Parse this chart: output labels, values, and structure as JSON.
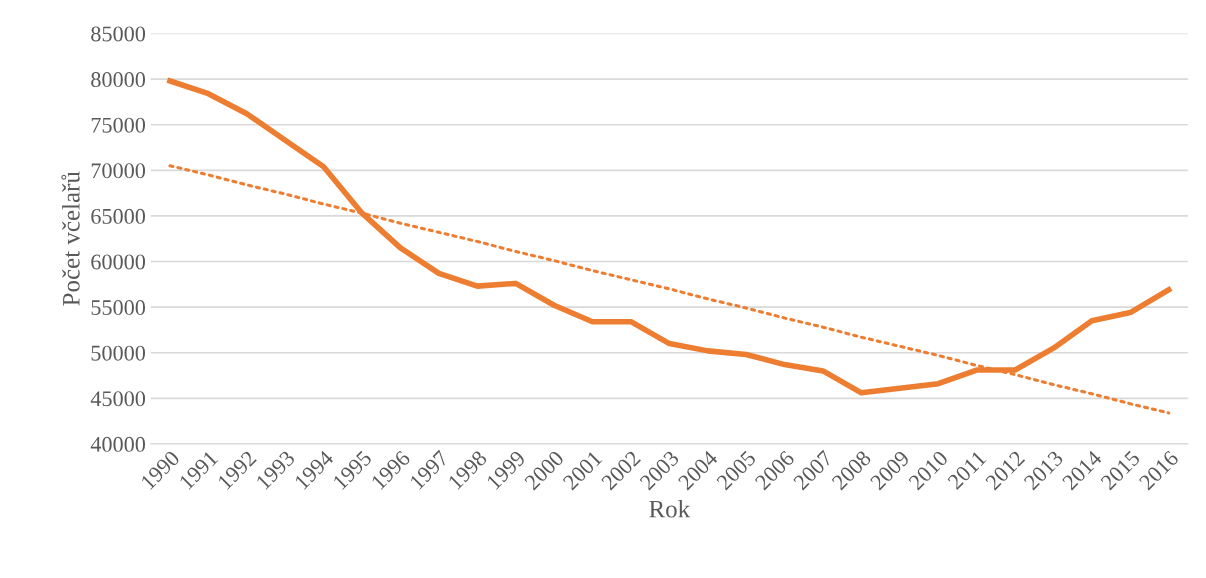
{
  "chart_data": {
    "type": "line",
    "xlabel": "Rok",
    "ylabel": "Počet včelařů",
    "categories": [
      "1990",
      "1991",
      "1992",
      "1993",
      "1994",
      "1995",
      "1996",
      "1997",
      "1998",
      "1999",
      "2000",
      "2001",
      "2002",
      "2003",
      "2004",
      "2005",
      "2006",
      "2007",
      "2008",
      "2009",
      "2010",
      "2011",
      "2012",
      "2013",
      "2014",
      "2015",
      "2016"
    ],
    "series": [
      {
        "color": "#ed7d31",
        "line_style": "solid",
        "values": [
          79800,
          78400,
          76200,
          73300,
          70400,
          65300,
          61500,
          58700,
          57300,
          57600,
          55200,
          53400,
          53400,
          51000,
          50200,
          49800,
          48700,
          48000,
          45600,
          46100,
          46600,
          48100,
          48100,
          50500,
          53500,
          54400,
          56900
        ]
      },
      {
        "type": "line",
        "color": "#ed7d31",
        "line_style": "dotted",
        "values": [
          70500,
          69500,
          68400,
          67400,
          66300,
          65300,
          64200,
          63200,
          62200,
          61100,
          60100,
          59000,
          58000,
          57000,
          55900,
          54900,
          53800,
          52800,
          51700,
          50700,
          49700,
          48600,
          47600,
          46500,
          45500,
          44400,
          43400
        ]
      }
    ],
    "ylim": [
      40000,
      85000
    ],
    "yticks": [
      40000,
      45000,
      50000,
      55000,
      60000,
      65000,
      70000,
      75000,
      80000,
      85000
    ],
    "grid": "y",
    "legend": false,
    "marker": "none"
  }
}
